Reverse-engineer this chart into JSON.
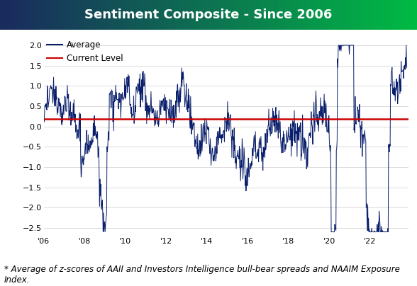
{
  "title": "Sentiment Composite - Since 2006",
  "title_bg_left": "#1a2a5e",
  "title_bg_right": "#00aa44",
  "title_color": "white",
  "title_fontsize": 13,
  "line_color": "#0a1f6b",
  "current_level_color": "#cc0000",
  "current_level_value": 0.18,
  "ylim": [
    -2.7,
    2.2
  ],
  "yticks": [
    -2.5,
    -2.0,
    -1.5,
    -1.0,
    -0.5,
    0.0,
    0.5,
    1.0,
    1.5,
    2.0
  ],
  "xtick_years": [
    2006,
    2008,
    2010,
    2012,
    2014,
    2016,
    2018,
    2020,
    2022
  ],
  "xtick_labels": [
    "'06",
    "'08",
    "'10",
    "'12",
    "'14",
    "'16",
    "'18",
    "'20",
    "'22"
  ],
  "legend_average_label": "Average",
  "legend_current_label": "Current Level",
  "footnote": "* Average of z-scores of AAII and Investors Intelligence bull-bear spreads and NAAIM Exposure\nIndex.",
  "footnote_fontsize": 8.5,
  "grid_color": "#cccccc",
  "background_color": "white"
}
